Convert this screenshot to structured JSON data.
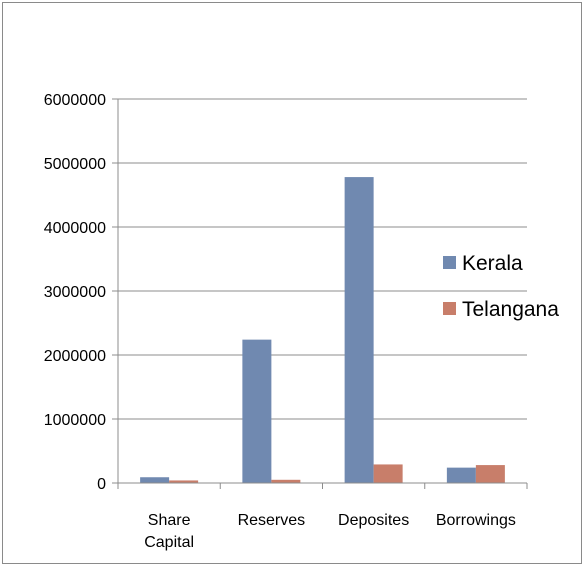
{
  "chart_data": {
    "type": "bar",
    "categories": [
      "Share Capital",
      "Reserves",
      "Deposites",
      "Borrowings"
    ],
    "category_lines": [
      [
        "Share",
        "Capital"
      ],
      [
        "Reserves"
      ],
      [
        "Deposites"
      ],
      [
        "Borrowings"
      ]
    ],
    "series": [
      {
        "name": "Kerala",
        "color": "#7089b0",
        "values": [
          90000,
          2240000,
          4780000,
          240000
        ]
      },
      {
        "name": "Telangana",
        "color": "#c87e6a",
        "values": [
          40000,
          50000,
          290000,
          280000
        ]
      }
    ],
    "ylim": [
      0,
      6000000
    ],
    "yticks": [
      0,
      1000000,
      2000000,
      3000000,
      4000000,
      5000000,
      6000000
    ],
    "ytick_labels": [
      "0",
      "1000000",
      "2000000",
      "3000000",
      "4000000",
      "5000000",
      "6000000"
    ],
    "grid": true,
    "legend_position": "right",
    "title": "",
    "xlabel": "",
    "ylabel": ""
  }
}
